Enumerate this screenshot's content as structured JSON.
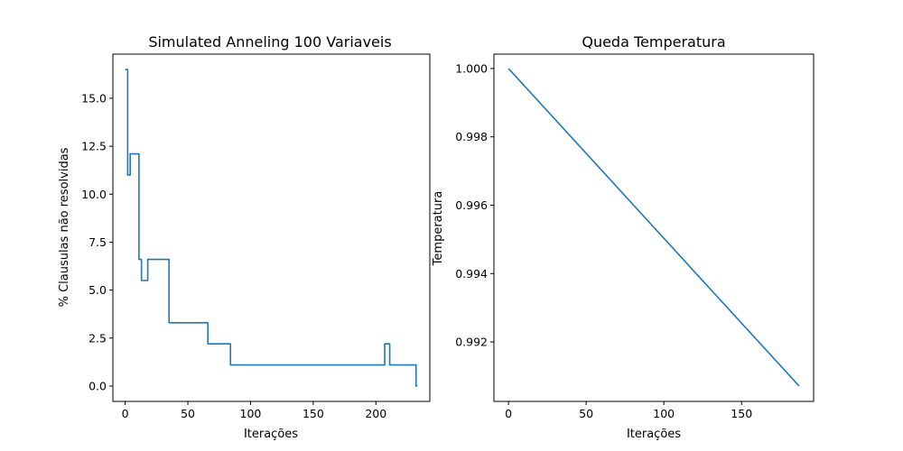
{
  "chart_data": [
    {
      "type": "line",
      "title": "Simulated Anneling 100 Variaveis",
      "xlabel": "Iterações",
      "ylabel": "% Clausulas não resolvidas",
      "xlim": [
        -9.8,
        243
      ],
      "ylim": [
        -0.8,
        17.3
      ],
      "xticks": [
        0,
        50,
        100,
        150,
        200
      ],
      "xtick_labels": [
        "0",
        "50",
        "100",
        "150",
        "200"
      ],
      "yticks": [
        0.0,
        2.5,
        5.0,
        7.5,
        10.0,
        12.5,
        15.0
      ],
      "ytick_labels": [
        "0.0",
        "2.5",
        "5.0",
        "7.5",
        "10.0",
        "12.5",
        "15.0"
      ],
      "grid": false,
      "color": "#1f77b4",
      "series": [
        {
          "x": [
            0,
            2,
            2,
            4,
            4,
            6,
            6,
            11,
            11,
            13,
            13,
            18,
            18,
            35,
            35,
            66,
            66,
            84,
            84,
            207,
            207,
            211,
            211,
            232,
            232,
            233
          ],
          "y": [
            16.5,
            16.5,
            11.0,
            11.0,
            12.1,
            12.1,
            12.1,
            12.1,
            6.6,
            6.6,
            5.5,
            5.5,
            6.6,
            6.6,
            3.3,
            3.3,
            2.2,
            2.2,
            1.1,
            1.1,
            2.2,
            2.2,
            1.1,
            1.1,
            0.0,
            0.0
          ]
        }
      ]
    },
    {
      "type": "line",
      "title": "Queda Temperatura",
      "xlabel": "Iterações",
      "ylabel": "Temperatura",
      "xlim": [
        -9.35,
        196.35
      ],
      "ylim": [
        0.99026,
        1.00042
      ],
      "xticks": [
        0,
        50,
        100,
        150
      ],
      "xtick_labels": [
        "0",
        "50",
        "100",
        "150"
      ],
      "yticks": [
        0.992,
        0.994,
        0.996,
        0.998,
        1.0
      ],
      "ytick_labels": [
        "0.992",
        "0.994",
        "0.996",
        "0.998",
        "1.000"
      ],
      "grid": false,
      "color": "#1f77b4",
      "series": [
        {
          "x": [
            0,
            187
          ],
          "y": [
            1.0,
            0.99071
          ]
        }
      ]
    }
  ]
}
